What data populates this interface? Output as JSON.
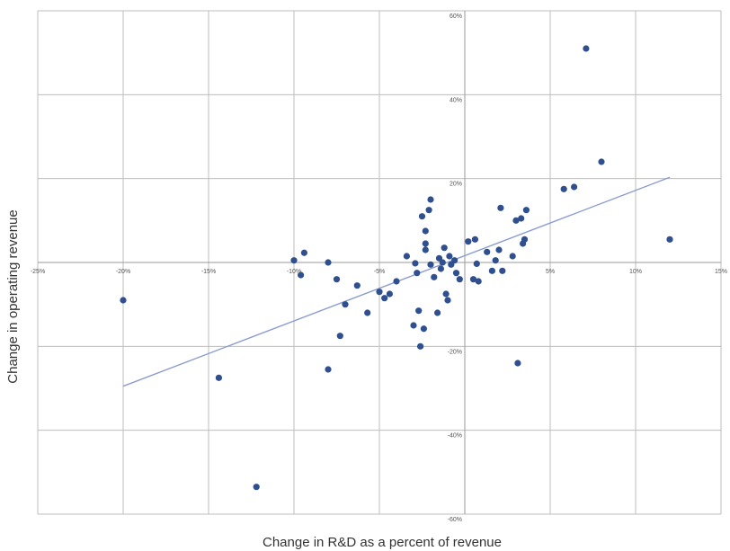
{
  "chart_data": {
    "type": "scatter",
    "xlabel": "Change in R&D as a percent of revenue",
    "ylabel": "Change in operating revenue",
    "xlim": [
      -25,
      15
    ],
    "ylim": [
      -60,
      60
    ],
    "x_ticks": [
      -25,
      -20,
      -15,
      -10,
      -5,
      0,
      5,
      10,
      15
    ],
    "y_ticks": [
      -60,
      -40,
      -20,
      20,
      40,
      60
    ],
    "x_tick_labels": [
      "-25%",
      "-20%",
      "-15%",
      "-10%",
      "-5%",
      "",
      "5%",
      "10%",
      "15%"
    ],
    "y_tick_labels": [
      "-60%",
      "-40%",
      "-20%",
      "20%",
      "40%",
      "60%"
    ],
    "grid": true,
    "marker_color": "#2f4f8f",
    "trendline_color": "#8a9cd0",
    "trendline": {
      "x": [
        -20,
        12
      ],
      "y": [
        -29.5,
        20.3
      ]
    },
    "points": [
      [
        -20,
        -9
      ],
      [
        -14.4,
        -27.5
      ],
      [
        -12.2,
        -53.5
      ],
      [
        -10,
        0.5
      ],
      [
        -9.6,
        -3
      ],
      [
        -9.4,
        2.3
      ],
      [
        -8,
        0
      ],
      [
        -8,
        -25.5
      ],
      [
        -7.5,
        -4
      ],
      [
        -7.3,
        -17.5
      ],
      [
        -7,
        -10
      ],
      [
        -6.3,
        -5.5
      ],
      [
        -5.7,
        -12
      ],
      [
        -5,
        -7
      ],
      [
        -4.7,
        -8.5
      ],
      [
        -4.4,
        -7.5
      ],
      [
        -4,
        -4.5
      ],
      [
        -3.4,
        1.5
      ],
      [
        -3,
        -15
      ],
      [
        -2.9,
        -0.2
      ],
      [
        -2.8,
        -2.5
      ],
      [
        -2.7,
        -11.5
      ],
      [
        -2.6,
        -20
      ],
      [
        -2.5,
        11
      ],
      [
        -2.4,
        -15.8
      ],
      [
        -2.3,
        4.5
      ],
      [
        -2.3,
        7.5
      ],
      [
        -2.3,
        3
      ],
      [
        -2.1,
        12.5
      ],
      [
        -2,
        15
      ],
      [
        -2,
        -0.5
      ],
      [
        -1.8,
        -3.5
      ],
      [
        -1.6,
        -12
      ],
      [
        -1.5,
        1
      ],
      [
        -1.4,
        -1.5
      ],
      [
        -1.3,
        0
      ],
      [
        -1.2,
        3.5
      ],
      [
        -1.1,
        -7.5
      ],
      [
        -1,
        -9
      ],
      [
        -0.9,
        1.5
      ],
      [
        -0.8,
        -0.5
      ],
      [
        -0.6,
        0.5
      ],
      [
        -0.5,
        -2.5
      ],
      [
        -0.3,
        -4
      ],
      [
        0.2,
        5
      ],
      [
        0.5,
        -4
      ],
      [
        0.6,
        5.5
      ],
      [
        0.7,
        -0.3
      ],
      [
        0.8,
        -4.5
      ],
      [
        1.3,
        2.5
      ],
      [
        1.6,
        -2
      ],
      [
        1.8,
        0.5
      ],
      [
        2,
        3
      ],
      [
        2.1,
        13
      ],
      [
        2.2,
        -2
      ],
      [
        2.8,
        1.5
      ],
      [
        3,
        10
      ],
      [
        3.1,
        -24
      ],
      [
        3.3,
        10.5
      ],
      [
        3.4,
        4.5
      ],
      [
        3.5,
        5.5
      ],
      [
        3.6,
        12.5
      ],
      [
        5.8,
        17.5
      ],
      [
        6.4,
        18
      ],
      [
        7.1,
        51
      ],
      [
        8,
        24
      ],
      [
        12,
        5.5
      ]
    ]
  }
}
